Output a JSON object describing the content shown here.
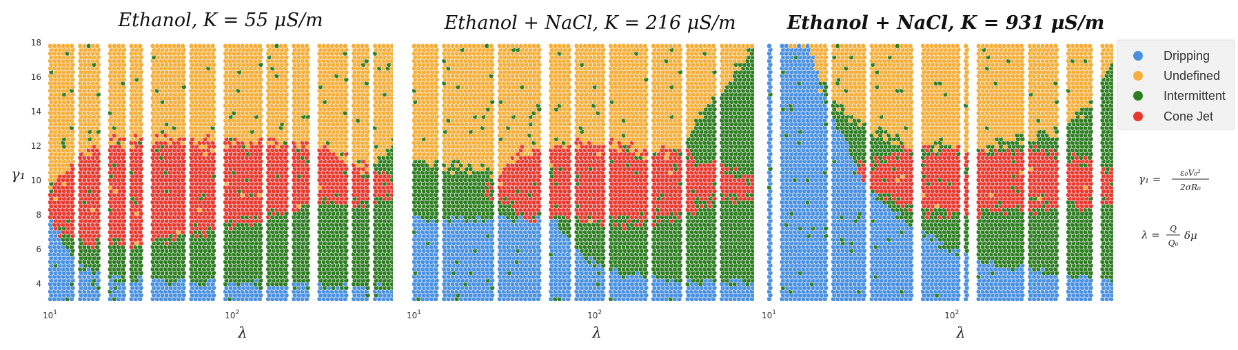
{
  "legend": {
    "items": [
      {
        "label": "Dripping",
        "color": "#4a90e2"
      },
      {
        "label": "Undefined",
        "color": "#f5ae3a"
      },
      {
        "label": "Intermittent",
        "color": "#2e7d22"
      },
      {
        "label": "Cone Jet",
        "color": "#e8392f"
      }
    ]
  },
  "formulas": {
    "gamma_lhs": "γ₁ =",
    "gamma_num": "ε₀V₀²",
    "gamma_den": "2σR₀",
    "lambda_lhs": "λ =",
    "lambda_num": "Q",
    "lambda_den": "Q₀",
    "lambda_tail": "δμ"
  },
  "chart_data": [
    {
      "type": "scatter",
      "title": "Ethanol, K = 55 μS/m",
      "xlabel": "λ",
      "ylabel": "γ₁",
      "x_scale": "log",
      "xlim": [
        10,
        780
      ],
      "ylim": [
        3,
        18
      ],
      "x_ticks": [
        {
          "value": 10,
          "base": "10",
          "exp": "1"
        },
        {
          "value": 100,
          "base": "10",
          "exp": "2"
        }
      ],
      "y_ticks": [
        4,
        6,
        8,
        10,
        12,
        14,
        16,
        18
      ],
      "grid": false,
      "legend_position": "right, outside",
      "series": [
        "Dripping",
        "Undefined",
        "Intermittent",
        "Cone Jet"
      ],
      "regions": {
        "dripping_top": [
          [
            10,
            7.8
          ],
          [
            12,
            6.5
          ],
          [
            15,
            5.0
          ],
          [
            20,
            4.6
          ],
          [
            30,
            4.3
          ],
          [
            50,
            4.2
          ],
          [
            100,
            4.0
          ],
          [
            200,
            3.9
          ],
          [
            400,
            3.8
          ],
          [
            780,
            3.8
          ]
        ],
        "conejet_top": [
          [
            10,
            9.5
          ],
          [
            15,
            11.5
          ],
          [
            20,
            12.3
          ],
          [
            40,
            12.3
          ],
          [
            100,
            12.2
          ],
          [
            200,
            12.2
          ],
          [
            300,
            12.0
          ],
          [
            400,
            11.5
          ],
          [
            600,
            10.5
          ],
          [
            780,
            10.0
          ]
        ],
        "conejet_bottom": [
          [
            10,
            7.5
          ],
          [
            15,
            6.5
          ],
          [
            20,
            6.2
          ],
          [
            40,
            6.5
          ],
          [
            80,
            7.0
          ],
          [
            120,
            7.6
          ],
          [
            200,
            8.3
          ],
          [
            400,
            8.8
          ],
          [
            780,
            9.0
          ]
        ],
        "intermittent_top": [
          [
            10,
            7.8
          ],
          [
            12,
            7.5
          ],
          [
            15,
            7.0
          ],
          [
            30,
            6.8
          ],
          [
            60,
            7.0
          ],
          [
            100,
            7.8
          ],
          [
            200,
            8.5
          ],
          [
            400,
            9.0
          ],
          [
            780,
            12.0
          ]
        ]
      }
    },
    {
      "type": "scatter",
      "title": "Ethanol + NaCl, K = 216 μS/m",
      "xlabel": "λ",
      "x_scale": "log",
      "xlim": [
        10,
        780
      ],
      "ylim": [
        3,
        18
      ],
      "x_ticks": [
        {
          "value": 10,
          "base": "10",
          "exp": "1"
        },
        {
          "value": 100,
          "base": "10",
          "exp": "2"
        }
      ],
      "series": [
        "Dripping",
        "Undefined",
        "Intermittent",
        "Cone Jet"
      ],
      "regions": {
        "dripping_top": [
          [
            10,
            7.8
          ],
          [
            30,
            7.8
          ],
          [
            60,
            7.7
          ],
          [
            90,
            5.5
          ],
          [
            150,
            4.5
          ],
          [
            300,
            4.2
          ],
          [
            780,
            4.0
          ]
        ],
        "conejet_top": [
          [
            10,
            9.5
          ],
          [
            25,
            9.5
          ],
          [
            40,
            11.6
          ],
          [
            80,
            12.2
          ],
          [
            150,
            12.0
          ],
          [
            300,
            11.5
          ],
          [
            500,
            10.8
          ],
          [
            780,
            10.0
          ]
        ],
        "conejet_bottom": [
          [
            10,
            9.5
          ],
          [
            25,
            9.5
          ],
          [
            40,
            8.0
          ],
          [
            80,
            7.8
          ],
          [
            150,
            7.5
          ],
          [
            300,
            8.0
          ],
          [
            500,
            9.0
          ],
          [
            780,
            9.0
          ]
        ],
        "intermittent_top": [
          [
            10,
            11.2
          ],
          [
            30,
            10.5
          ],
          [
            60,
            10.2
          ],
          [
            120,
            10.5
          ],
          [
            250,
            11.0
          ],
          [
            400,
            14.0
          ],
          [
            600,
            16.0
          ],
          [
            780,
            18.0
          ]
        ]
      }
    },
    {
      "type": "scatter",
      "title": "Ethanol + NaCl, K = 931 μS/m",
      "xlabel": "λ",
      "x_scale": "log",
      "xlim": [
        10,
        780
      ],
      "ylim": [
        3,
        18
      ],
      "x_ticks": [
        {
          "value": 10,
          "base": "10",
          "exp": "1"
        },
        {
          "value": 100,
          "base": "10",
          "exp": "2"
        }
      ],
      "series": [
        "Dripping",
        "Undefined",
        "Intermittent",
        "Cone Jet"
      ],
      "regions": {
        "dripping_top": [
          [
            10,
            18.0
          ],
          [
            17,
            18.0
          ],
          [
            20,
            15.0
          ],
          [
            25,
            13.0
          ],
          [
            35,
            9.5
          ],
          [
            60,
            7.5
          ],
          [
            100,
            6.0
          ],
          [
            200,
            5.0
          ],
          [
            400,
            4.5
          ],
          [
            780,
            4.2
          ]
        ],
        "conejet_top": [
          [
            22,
            10.0
          ],
          [
            35,
            11.0
          ],
          [
            60,
            11.8
          ],
          [
            100,
            11.8
          ],
          [
            200,
            11.8
          ],
          [
            400,
            11.5
          ],
          [
            600,
            11.0
          ],
          [
            780,
            10.5
          ]
        ],
        "conejet_bottom": [
          [
            22,
            10.0
          ],
          [
            35,
            9.8
          ],
          [
            60,
            8.2
          ],
          [
            100,
            8.0
          ],
          [
            200,
            8.3
          ],
          [
            400,
            8.5
          ],
          [
            780,
            8.6
          ]
        ],
        "intermittent_top": [
          [
            20,
            15.5
          ],
          [
            30,
            13.5
          ],
          [
            60,
            12.0
          ],
          [
            150,
            12.0
          ],
          [
            400,
            13.0
          ],
          [
            600,
            14.5
          ],
          [
            780,
            17.0
          ]
        ]
      }
    }
  ]
}
